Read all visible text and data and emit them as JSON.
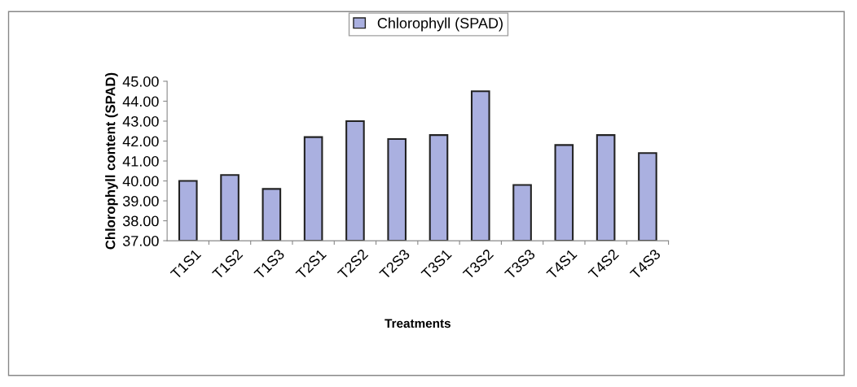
{
  "chart_data": {
    "type": "bar",
    "xlabel": "Treatments",
    "ylabel": "Chlorophyll content (SPAD)",
    "categories": [
      "T1S1",
      "T1S2",
      "T1S3",
      "T2S1",
      "T2S2",
      "T2S3",
      "T3S1",
      "T3S2",
      "T3S3",
      "T4S1",
      "T4S2",
      "T4S3"
    ],
    "series": [
      {
        "name": "Chlorophyll (SPAD)",
        "color": "#aab0e0",
        "values": [
          40.0,
          40.3,
          39.6,
          42.2,
          43.0,
          42.1,
          42.3,
          44.5,
          39.8,
          41.8,
          42.3,
          41.4
        ]
      }
    ],
    "ylim": [
      37,
      45
    ],
    "yticks": [
      {
        "value": 37,
        "label": "37.00"
      },
      {
        "value": 38,
        "label": "38.00"
      },
      {
        "value": 39,
        "label": "39.00"
      },
      {
        "value": 40,
        "label": "40.00"
      },
      {
        "value": 41,
        "label": "41.00"
      },
      {
        "value": 42,
        "label": "42.00"
      },
      {
        "value": 43,
        "label": "43.00"
      },
      {
        "value": 44,
        "label": "44.00"
      },
      {
        "value": 45,
        "label": "45.00"
      }
    ],
    "grid": false,
    "legend": "top"
  }
}
